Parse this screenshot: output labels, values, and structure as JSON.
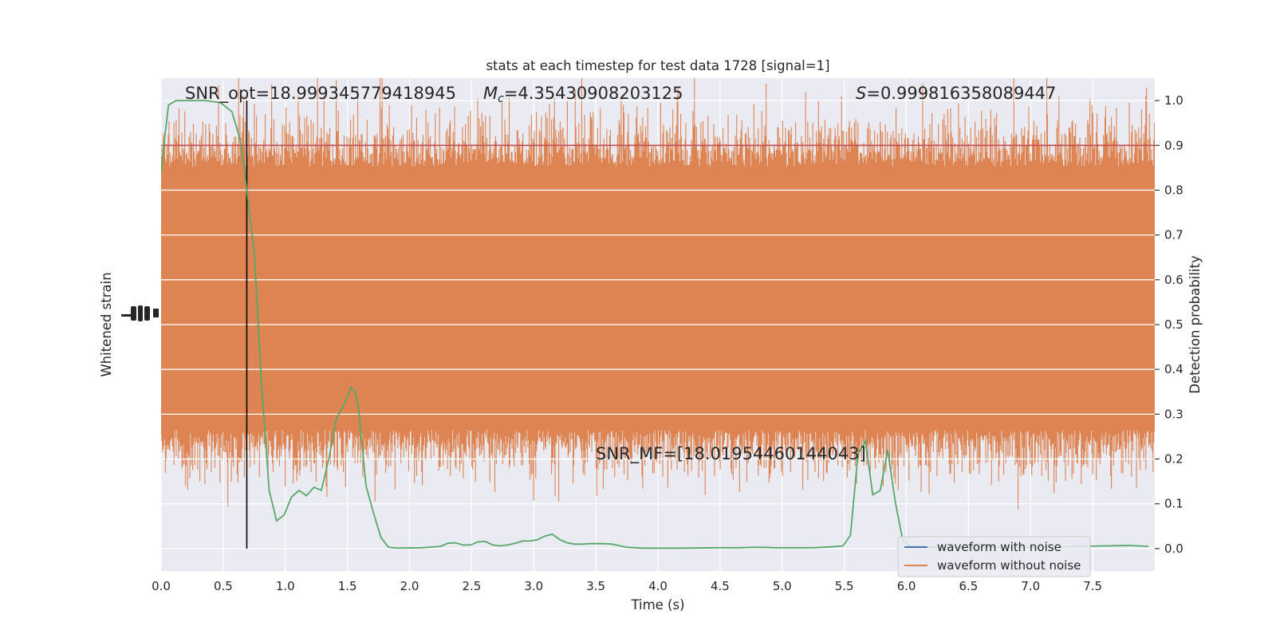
{
  "chart_data": {
    "type": "line",
    "title": "stats at each timestep for test data 1728 [signal=1]",
    "xlabel": "Time (s)",
    "ylabel_left": "Whitened strain",
    "ylabel_right": "Detection probability",
    "xlim": [
      0,
      8
    ],
    "ylim_right": [
      -0.05,
      1.05
    ],
    "grid": true,
    "x_ticks": [
      "0.0",
      "0.5",
      "1.0",
      "1.5",
      "2.0",
      "2.5",
      "3.0",
      "3.5",
      "4.0",
      "4.5",
      "5.0",
      "5.5",
      "6.0",
      "6.5",
      "7.0",
      "7.5"
    ],
    "y_ticks_right": [
      "0.0",
      "0.1",
      "0.2",
      "0.3",
      "0.4",
      "0.5",
      "0.6",
      "0.7",
      "0.8",
      "0.9",
      "1.0"
    ],
    "annotations": {
      "snr_opt": "SNR_opt=18.999345779418945",
      "mc_symbol": "M",
      "mc_sub": "c",
      "mc_value": "=4.35430908203125",
      "s_symbol": "S",
      "s_value": "=0.999816358089447",
      "snr_mf": "SNR_MF=[18.01954460144043]"
    },
    "threshold": 0.9,
    "merger_time": 0.69,
    "legend": {
      "placement": "lower-right",
      "entries": [
        "waveform with noise",
        "waveform without noise"
      ]
    },
    "series": [
      {
        "name": "waveform with noise",
        "color": "#4c72b0",
        "description": "dense noise band, fully overplotted"
      },
      {
        "name": "waveform without noise",
        "color": "#dd8452",
        "description": "dense noise band, spans approx. 0.1 to 1.0 on the probability scale"
      },
      {
        "name": "detection probability",
        "color": "#55a868",
        "x": [
          0.0,
          0.03,
          0.06,
          0.12,
          0.24,
          0.36,
          0.48,
          0.57,
          0.63,
          0.66,
          0.69,
          0.75,
          0.81,
          0.87,
          0.93,
          0.99,
          1.05,
          1.11,
          1.17,
          1.23,
          1.29,
          1.35,
          1.41,
          1.47,
          1.53,
          1.56,
          1.59,
          1.65,
          1.71,
          1.77,
          1.83,
          1.89,
          1.95,
          2.1,
          2.25,
          2.31,
          2.37,
          2.43,
          2.49,
          2.55,
          2.61,
          2.67,
          2.73,
          2.79,
          2.85,
          2.91,
          2.97,
          3.03,
          3.09,
          3.15,
          3.21,
          3.27,
          3.33,
          3.39,
          3.45,
          3.51,
          3.57,
          3.63,
          3.75,
          3.87,
          3.93,
          3.99,
          4.2,
          4.5,
          4.65,
          4.8,
          4.95,
          5.1,
          5.25,
          5.4,
          5.49,
          5.55,
          5.61,
          5.67,
          5.73,
          5.79,
          5.85,
          5.91,
          5.97,
          6.03,
          6.2,
          6.5,
          6.8,
          7.1,
          7.4,
          7.6,
          7.8,
          7.95
        ],
        "y": [
          0.84,
          0.92,
          0.99,
          1.0,
          1.0,
          1.0,
          0.995,
          0.975,
          0.92,
          0.87,
          0.8,
          0.66,
          0.36,
          0.13,
          0.062,
          0.075,
          0.115,
          0.13,
          0.118,
          0.137,
          0.13,
          0.2,
          0.29,
          0.32,
          0.36,
          0.35,
          0.31,
          0.14,
          0.08,
          0.025,
          0.003,
          0.0015,
          0.0015,
          0.002,
          0.005,
          0.012,
          0.013,
          0.008,
          0.008,
          0.015,
          0.016,
          0.008,
          0.006,
          0.008,
          0.012,
          0.017,
          0.017,
          0.02,
          0.028,
          0.032,
          0.02,
          0.013,
          0.01,
          0.01,
          0.011,
          0.011,
          0.011,
          0.01,
          0.003,
          0.001,
          0.001,
          0.001,
          0.001,
          0.002,
          0.002,
          0.003,
          0.002,
          0.002,
          0.002,
          0.004,
          0.006,
          0.03,
          0.21,
          0.24,
          0.12,
          0.13,
          0.22,
          0.105,
          0.02,
          0.005,
          0.003,
          0.003,
          0.003,
          0.003,
          0.005,
          0.006,
          0.007,
          0.005
        ]
      }
    ]
  }
}
